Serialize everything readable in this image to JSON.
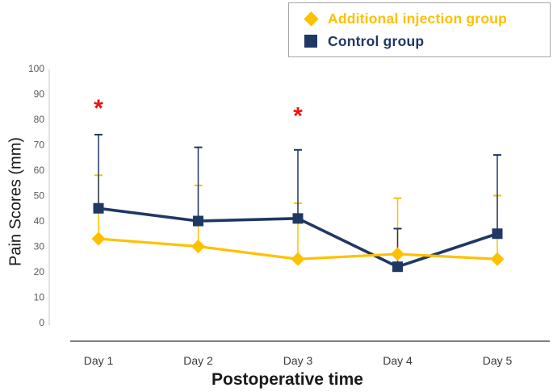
{
  "figure": {
    "y_axis_title": "Pain Scores (mm)",
    "x_axis_title": "Postoperative time"
  },
  "legend": {
    "items": [
      {
        "label": "Additional injection group",
        "marker": "diamond",
        "color": "#FFC000"
      },
      {
        "label": "Control group",
        "marker": "square",
        "color": "#1F3864"
      }
    ]
  },
  "chart_data": {
    "type": "line",
    "title": "",
    "xlabel": "Postoperative time",
    "ylabel": "Pain Scores (mm)",
    "categories": [
      "Day 1",
      "Day 2",
      "Day 3",
      "Day 4",
      "Day 5"
    ],
    "series": [
      {
        "name": "Additional injection group",
        "marker": "diamond",
        "color": "#FFC000",
        "values": [
          33,
          30,
          25,
          27,
          25
        ],
        "error_bar_top": [
          58,
          54,
          47,
          49,
          50
        ]
      },
      {
        "name": "Control group",
        "marker": "square",
        "color": "#1F3864",
        "values": [
          45,
          40,
          41,
          22,
          35
        ],
        "error_bar_top": [
          74,
          69,
          68,
          37,
          66
        ]
      }
    ],
    "annotations": [
      {
        "category": "Day 1",
        "symbol": "*",
        "value": 86,
        "color": "#EE1111"
      },
      {
        "category": "Day 3",
        "symbol": "*",
        "value": 83,
        "color": "#EE1111"
      }
    ],
    "ylim": [
      0,
      100
    ],
    "y_ticks": [
      0,
      10,
      20,
      30,
      40,
      50,
      60,
      70,
      80,
      90,
      100
    ],
    "grid": false,
    "legend_position": "top-right"
  },
  "style": {
    "background": "#FFFFFF",
    "y_axis_line_color": "#D9D9D9",
    "x_axis_line_color": "#7F7F7F",
    "tick_label_color": "#595959",
    "category_label_color": "#3B3B3B",
    "legend_border_color": "#A6A6A6"
  }
}
